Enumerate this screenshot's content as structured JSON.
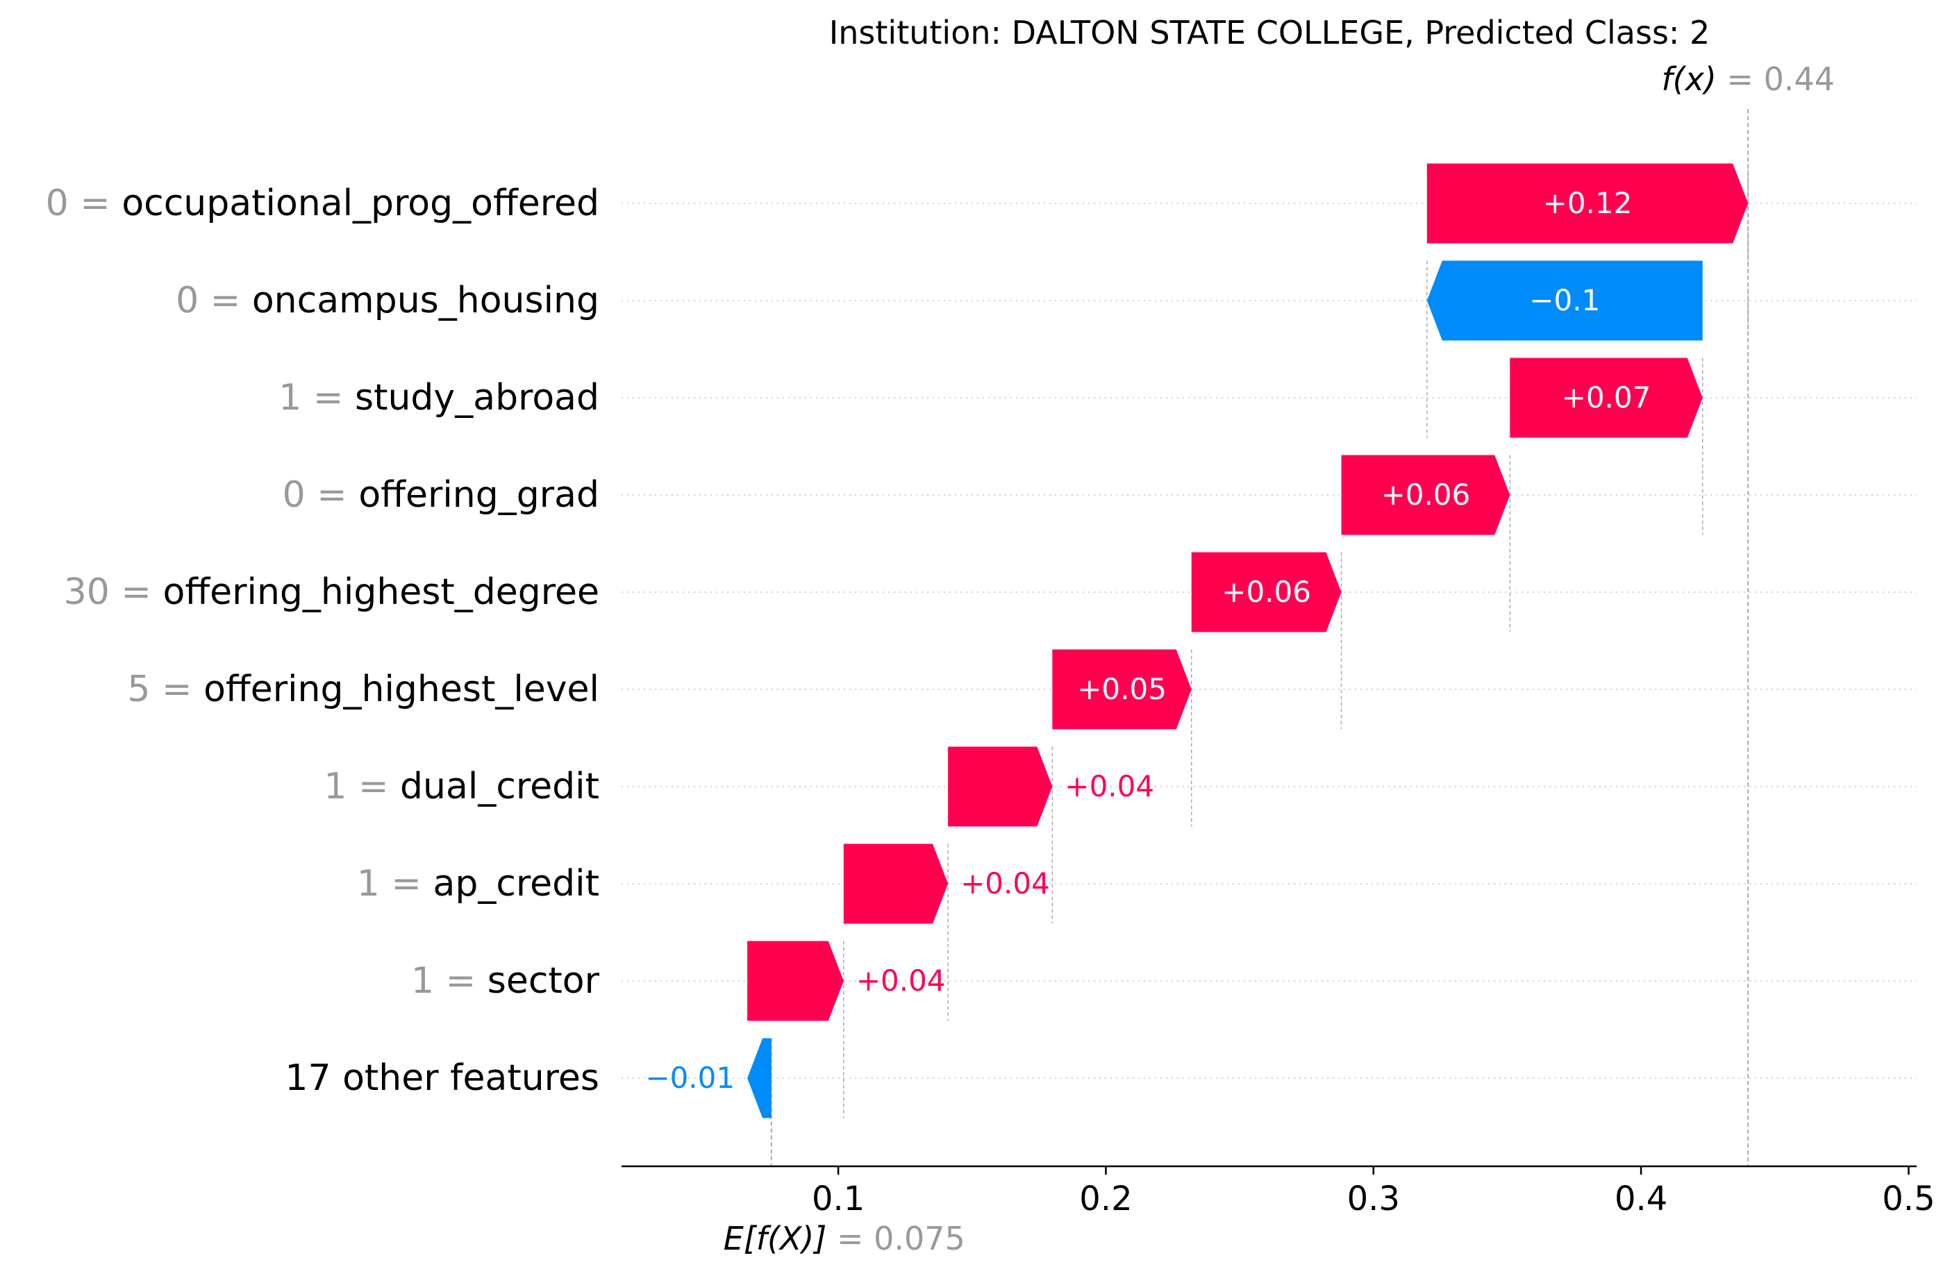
{
  "chart_data": {
    "type": "waterfall",
    "title": "Institution: DALTON STATE COLLEGE, Predicted Class: 2",
    "fx_label": "f(x)",
    "fx_value": 0.44,
    "fx_value_text": "= 0.44",
    "base_label": "E[f(X)]",
    "base_value": 0.075,
    "base_value_text": "= 0.075",
    "xlim": [
      0.019,
      0.503
    ],
    "xticks": [
      0.1,
      0.2,
      0.3,
      0.4,
      0.5
    ],
    "xtick_labels": [
      "0.1",
      "0.2",
      "0.3",
      "0.4",
      "0.5"
    ],
    "grid": "dotted horizontal per feature",
    "colors": {
      "positive": "#ff0051",
      "negative": "#008bfb",
      "value_text": "#999999",
      "text": "#000000"
    },
    "features": [
      {
        "value": "0",
        "name": "occupational_prog_offered",
        "start": 0.32,
        "end": 0.44,
        "label": "+0.12",
        "inside": true
      },
      {
        "value": "0",
        "name": "oncampus_housing",
        "start": 0.423,
        "end": 0.32,
        "label": "−0.1",
        "inside": true
      },
      {
        "value": "1",
        "name": "study_abroad",
        "start": 0.351,
        "end": 0.423,
        "label": "+0.07",
        "inside": true
      },
      {
        "value": "0",
        "name": "offering_grad",
        "start": 0.288,
        "end": 0.351,
        "label": "+0.06",
        "inside": true
      },
      {
        "value": "30",
        "name": "offering_highest_degree",
        "start": 0.232,
        "end": 0.288,
        "label": "+0.06",
        "inside": true
      },
      {
        "value": "5",
        "name": "offering_highest_level",
        "start": 0.18,
        "end": 0.232,
        "label": "+0.05",
        "inside": true
      },
      {
        "value": "1",
        "name": "dual_credit",
        "start": 0.141,
        "end": 0.18,
        "label": "+0.04",
        "inside": false
      },
      {
        "value": "1",
        "name": "ap_credit",
        "start": 0.102,
        "end": 0.141,
        "label": "+0.04",
        "inside": false
      },
      {
        "value": "1",
        "name": "sector",
        "start": 0.066,
        "end": 0.102,
        "label": "+0.04",
        "inside": false
      },
      {
        "value": "",
        "name": "17 other features",
        "start": 0.075,
        "end": 0.066,
        "label": "−0.01",
        "inside": false
      }
    ]
  }
}
